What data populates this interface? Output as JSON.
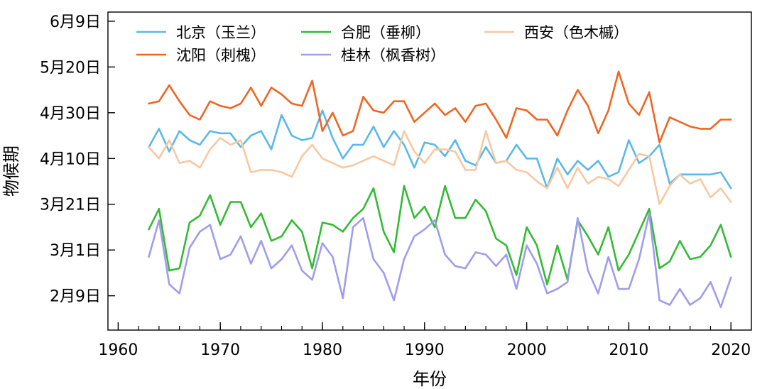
{
  "chart_data": {
    "type": "line",
    "title": "",
    "xlabel": "年份",
    "ylabel": "物候期",
    "xlim": [
      1959,
      2022
    ],
    "ylim": [
      25,
      164
    ],
    "x_ticks": [
      1960,
      1970,
      1980,
      1990,
      2000,
      2010,
      2020
    ],
    "y_ticks": [
      {
        "value": 40,
        "label": "2月9日"
      },
      {
        "value": 60,
        "label": "3月1日"
      },
      {
        "value": 80,
        "label": "3月21日"
      },
      {
        "value": 100,
        "label": "4月10日"
      },
      {
        "value": 120,
        "label": "4月30日"
      },
      {
        "value": 140,
        "label": "5月20日"
      },
      {
        "value": 160,
        "label": "6月9日"
      }
    ],
    "grid": false,
    "legend_position": "top",
    "series": [
      {
        "name": "北京（玉兰）",
        "color": "#5bb8ea",
        "x": [
          1963,
          1964,
          1965,
          1966,
          1967,
          1968,
          1969,
          1970,
          1971,
          1972,
          1973,
          1974,
          1975,
          1976,
          1977,
          1978,
          1979,
          1980,
          1981,
          1982,
          1983,
          1984,
          1985,
          1986,
          1987,
          1988,
          1989,
          1990,
          1991,
          1992,
          1993,
          1994,
          1995,
          1996,
          1997,
          1998,
          1999,
          2000,
          2001,
          2002,
          2003,
          2004,
          2005,
          2006,
          2007,
          2008,
          2009,
          2010,
          2011,
          2012,
          2013,
          2014,
          2015,
          2016,
          2017,
          2018,
          2019,
          2020
        ],
        "values": [
          105,
          113,
          103,
          112,
          108,
          106,
          112,
          111,
          111,
          105,
          110,
          112,
          104,
          119,
          110,
          108,
          109,
          121,
          109,
          100,
          106,
          106,
          114,
          105,
          112,
          106,
          96,
          107,
          106,
          101,
          108,
          99,
          97,
          105,
          98,
          99,
          106,
          100,
          100,
          87,
          100,
          93,
          99,
          95,
          99,
          92,
          94,
          108,
          98,
          101,
          106,
          89,
          93,
          93,
          93,
          93,
          94,
          87
        ]
      },
      {
        "name": "合肥（垂柳）",
        "color": "#33bb33",
        "x": [
          1963,
          1964,
          1965,
          1966,
          1967,
          1968,
          1969,
          1970,
          1971,
          1972,
          1973,
          1974,
          1975,
          1976,
          1977,
          1978,
          1979,
          1980,
          1981,
          1982,
          1983,
          1984,
          1985,
          1986,
          1987,
          1988,
          1989,
          1990,
          1991,
          1992,
          1993,
          1994,
          1995,
          1996,
          1997,
          1998,
          1999,
          2000,
          2001,
          2002,
          2003,
          2004,
          2005,
          2006,
          2007,
          2008,
          2009,
          2010,
          2011,
          2012,
          2013,
          2014,
          2015,
          2016,
          2017,
          2018,
          2019,
          2020
        ],
        "values": [
          69,
          78,
          51,
          52,
          72,
          75,
          84,
          71,
          81,
          81,
          70,
          76,
          64,
          66,
          73,
          68,
          52,
          72,
          71,
          68,
          74,
          78,
          87,
          68,
          59,
          88,
          74,
          79,
          70,
          88,
          74,
          74,
          82,
          77,
          65,
          62,
          49,
          70,
          62,
          45,
          62,
          47,
          73,
          66,
          58,
          70,
          51,
          58,
          68,
          78,
          52,
          55,
          64,
          56,
          57,
          62,
          71,
          57
        ]
      },
      {
        "name": "西安（色木槭）",
        "color": "#f8c8a0",
        "x": [
          1963,
          1964,
          1965,
          1966,
          1967,
          1968,
          1969,
          1970,
          1971,
          1972,
          1973,
          1974,
          1975,
          1976,
          1977,
          1978,
          1979,
          1980,
          1981,
          1982,
          1983,
          1984,
          1985,
          1986,
          1987,
          1988,
          1989,
          1990,
          1991,
          1992,
          1993,
          1994,
          1995,
          1996,
          1997,
          1998,
          1999,
          2000,
          2001,
          2002,
          2003,
          2004,
          2005,
          2006,
          2007,
          2008,
          2009,
          2010,
          2011,
          2012,
          2013,
          2014,
          2015,
          2016,
          2017,
          2018,
          2019,
          2020
        ],
        "values": [
          105,
          100,
          108,
          98,
          99,
          96,
          104,
          109,
          106,
          108,
          94,
          95,
          95,
          94,
          92,
          101,
          106,
          100,
          98,
          96,
          97,
          99,
          101,
          99,
          97,
          112,
          103,
          98,
          104,
          104,
          103,
          95,
          95,
          112,
          98,
          99,
          95,
          94,
          90,
          87,
          96,
          87,
          96,
          89,
          92,
          91,
          88,
          95,
          102,
          101,
          80,
          88,
          93,
          89,
          91,
          83,
          87,
          81
        ]
      },
      {
        "name": "沈阳（刺槐）",
        "color": "#ee6622",
        "x": [
          1963,
          1964,
          1965,
          1966,
          1967,
          1968,
          1969,
          1970,
          1971,
          1972,
          1973,
          1974,
          1975,
          1976,
          1977,
          1978,
          1979,
          1980,
          1981,
          1982,
          1983,
          1984,
          1985,
          1986,
          1987,
          1988,
          1989,
          1990,
          1991,
          1992,
          1993,
          1994,
          1995,
          1996,
          1997,
          1998,
          1999,
          2000,
          2001,
          2002,
          2003,
          2004,
          2005,
          2006,
          2007,
          2008,
          2009,
          2010,
          2011,
          2012,
          2013,
          2014,
          2015,
          2016,
          2017,
          2018,
          2019,
          2020
        ],
        "values": [
          124,
          125,
          132,
          125,
          119,
          117,
          125,
          123,
          122,
          124,
          131,
          123,
          131,
          128,
          124,
          123,
          134,
          112,
          120,
          110,
          112,
          127,
          121,
          120,
          125,
          125,
          116,
          120,
          124,
          119,
          122,
          116,
          123,
          124,
          117,
          109,
          122,
          121,
          117,
          117,
          110,
          121,
          130,
          123,
          111,
          121,
          138,
          124,
          119,
          129,
          107,
          118,
          116,
          114,
          113,
          113,
          117,
          117
        ]
      },
      {
        "name": "桂林（枫香树）",
        "color": "#a09cee",
        "x": [
          1963,
          1964,
          1965,
          1966,
          1967,
          1968,
          1969,
          1970,
          1971,
          1972,
          1973,
          1974,
          1975,
          1976,
          1977,
          1978,
          1979,
          1980,
          1981,
          1982,
          1983,
          1984,
          1985,
          1986,
          1987,
          1988,
          1989,
          1990,
          1991,
          1992,
          1993,
          1994,
          1995,
          1996,
          1997,
          1998,
          1999,
          2000,
          2001,
          2002,
          2003,
          2004,
          2005,
          2006,
          2007,
          2008,
          2009,
          2010,
          2011,
          2012,
          2013,
          2014,
          2015,
          2016,
          2017,
          2018,
          2019,
          2020
        ],
        "values": [
          57,
          73,
          45,
          41,
          61,
          68,
          71,
          56,
          58,
          66,
          54,
          64,
          52,
          56,
          62,
          51,
          47,
          63,
          57,
          39,
          70,
          74,
          56,
          50,
          38,
          56,
          66,
          69,
          73,
          58,
          53,
          52,
          59,
          58,
          53,
          58,
          43,
          62,
          54,
          41,
          43,
          46,
          74,
          51,
          41,
          57,
          43,
          43,
          56,
          76,
          38,
          36,
          43,
          36,
          39,
          46,
          35,
          48
        ]
      }
    ]
  }
}
